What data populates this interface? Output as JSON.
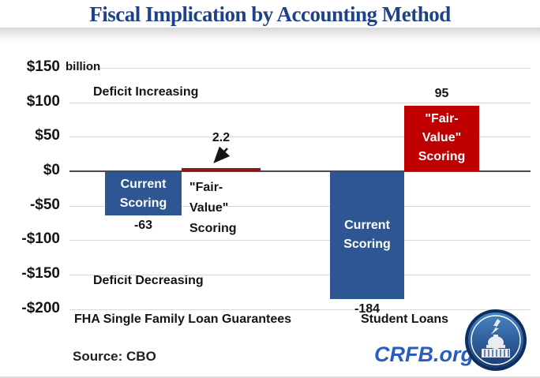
{
  "source": "Source: CBO",
  "branding": {
    "site": "CRFB.org"
  },
  "colors": {
    "title_navy": "#1E4289",
    "brand_blue": "#2A5DBE",
    "bar_blue": "#2E5693",
    "bar_red": "#C00000",
    "bar_red_thin": "#8C1818",
    "gridline": "#D8D8D8",
    "axis": "#4A4A4A"
  },
  "chart_data": {
    "type": "bar",
    "title": "Fiscal Implication by Accounting Method",
    "unit": "$ billion",
    "ylim": [
      -200,
      150
    ],
    "ytick_step": 50,
    "grid": true,
    "yticks": [
      {
        "value": 150,
        "label": "$150",
        "suffix": "billion"
      },
      {
        "value": 100,
        "label": "$100"
      },
      {
        "value": 50,
        "label": "$50"
      },
      {
        "value": 0,
        "label": "$0"
      },
      {
        "value": -50,
        "label": "-$50"
      },
      {
        "value": -100,
        "label": "-$100"
      },
      {
        "value": -150,
        "label": "-$150"
      },
      {
        "value": -200,
        "label": "-$200"
      }
    ],
    "region_labels": {
      "increase": "Deficit Increasing",
      "decrease": "Deficit Decreasing"
    },
    "groups": [
      {
        "category": "FHA Single Family Loan Guarantees",
        "bars": [
          {
            "series": "Current Scoring",
            "value": -63,
            "value_label": "-63",
            "color": "#2E5693",
            "label_lines": [
              "Current",
              "Scoring"
            ],
            "label_placement": "inside",
            "value_placement": "below"
          },
          {
            "series": "\"Fair-Value\" Scoring",
            "value": 2.2,
            "value_label": "2.2",
            "color": "#8C1818",
            "label_lines": [
              "\"Fair-",
              "Value\"",
              "Scoring"
            ],
            "label_placement": "below_axis",
            "value_placement": "arrow"
          }
        ]
      },
      {
        "category": "Student Loans",
        "bars": [
          {
            "series": "Current Scoring",
            "value": -184,
            "value_label": "-184",
            "color": "#2E5693",
            "label_lines": [
              "Current",
              "Scoring"
            ],
            "label_placement": "inside",
            "value_placement": "below"
          },
          {
            "series": "\"Fair-Value\" Scoring",
            "value": 95,
            "value_label": "95",
            "color": "#C00000",
            "label_lines": [
              "\"Fair-",
              "Value\"",
              "Scoring"
            ],
            "label_placement": "inside",
            "value_placement": "above"
          }
        ]
      }
    ]
  }
}
